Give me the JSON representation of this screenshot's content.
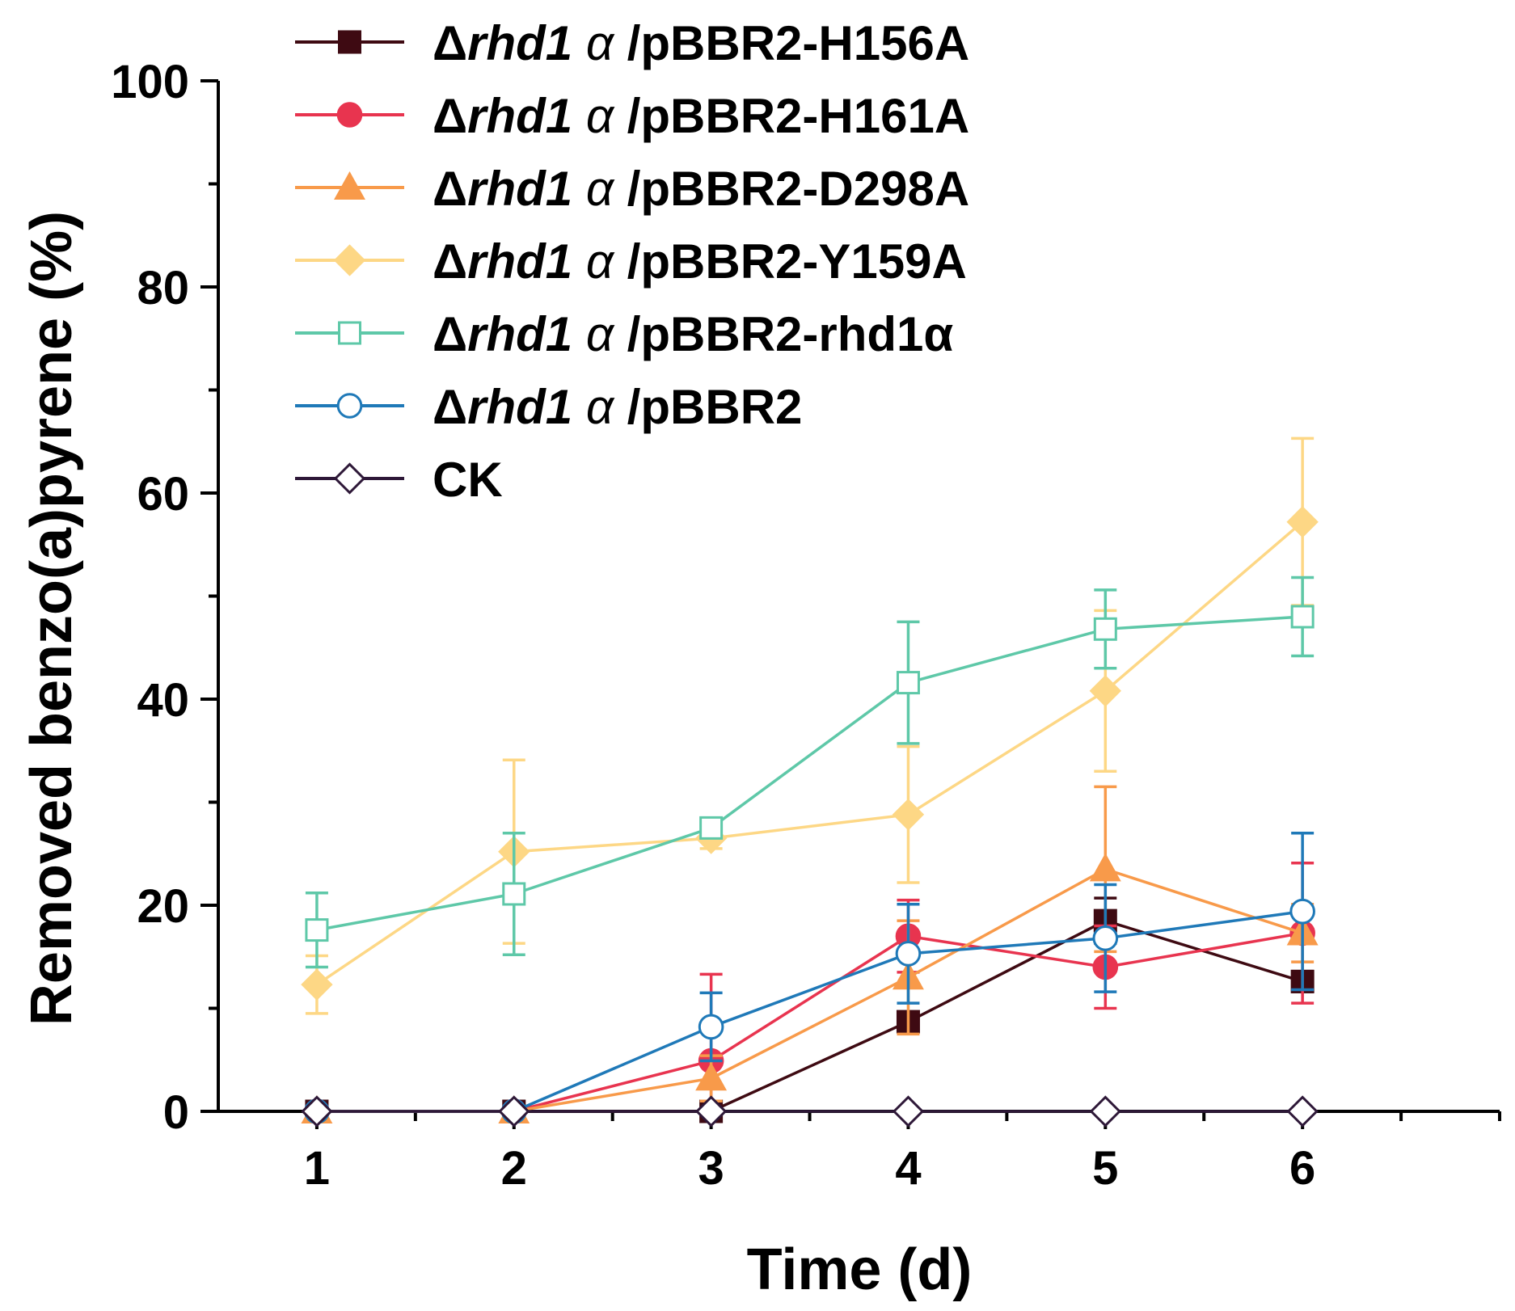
{
  "chart_data": {
    "type": "line",
    "title": "",
    "xlabel": "Time (d)",
    "ylabel": "Removed benzo(a)pyrene (%)",
    "xlim": [
      0.5,
      7.0
    ],
    "ylim": [
      0,
      100
    ],
    "x_ticks": [
      1,
      2,
      3,
      4,
      5,
      6
    ],
    "y_ticks": [
      0,
      20,
      40,
      60,
      80,
      100
    ],
    "x_tick_labels": [
      "1",
      "2",
      "3",
      "4",
      "5",
      "6"
    ],
    "y_tick_labels": [
      "0",
      "20",
      "40",
      "60",
      "80",
      "100"
    ],
    "grid": false,
    "legend_position": "top-left",
    "x": [
      1,
      2,
      3,
      4,
      5,
      6
    ],
    "series": [
      {
        "name": "Δrhd1α /pBBR2-H156A",
        "legend": {
          "delta": "Δ",
          "italic": "rhd1",
          "alpha": "α",
          "suffix": " /pBBR2-H156A"
        },
        "color": "#3e0a12",
        "marker": "square",
        "filled": true,
        "values": [
          0,
          0,
          0,
          8.7,
          18.5,
          12.6
        ],
        "errors": [
          0,
          0,
          0,
          0.8,
          2.2,
          1.0
        ]
      },
      {
        "name": "Δrhd1α /pBBR2-H161A",
        "legend": {
          "delta": "Δ",
          "italic": "rhd1",
          "alpha": "α",
          "suffix": " /pBBR2-H161A"
        },
        "color": "#e8344f",
        "marker": "circle",
        "filled": true,
        "values": [
          0,
          0,
          4.9,
          17.0,
          14.0,
          17.3
        ],
        "errors": [
          0,
          0,
          8.4,
          3.5,
          4.0,
          6.8
        ]
      },
      {
        "name": "Δrhd1α /pBBR2-D298A",
        "legend": {
          "delta": "Δ",
          "italic": "rhd1",
          "alpha": "α",
          "suffix": " /pBBR2-D298A"
        },
        "color": "#f89a4a",
        "marker": "triangle",
        "filled": true,
        "values": [
          0,
          0,
          3.2,
          13.0,
          23.5,
          17.3
        ],
        "errors": [
          0,
          0,
          2.2,
          5.5,
          8.0,
          2.8
        ]
      },
      {
        "name": "Δrhd1α /pBBR2-Y159A",
        "legend": {
          "delta": "Δ",
          "italic": "rhd1",
          "alpha": "α",
          "suffix": " /pBBR2-Y159A"
        },
        "color": "#fdd785",
        "marker": "diamond",
        "filled": true,
        "values": [
          12.3,
          25.2,
          26.5,
          28.8,
          40.8,
          57.2
        ],
        "errors": [
          2.8,
          8.9,
          1.0,
          6.6,
          7.8,
          8.1
        ]
      },
      {
        "name": "Δrhd1α /pBBR2-rhd1α",
        "legend": {
          "delta": "Δ",
          "italic": "rhd1",
          "alpha": "α",
          "suffix": " /pBBR2-rhd1α"
        },
        "color": "#5ec8a8",
        "marker": "square",
        "filled": false,
        "values": [
          17.6,
          21.1,
          27.5,
          41.6,
          46.8,
          48.0
        ],
        "errors": [
          3.6,
          5.9,
          0.5,
          5.9,
          3.8,
          3.8
        ]
      },
      {
        "name": "Δrhd1α /pBBR2",
        "legend": {
          "delta": "Δ",
          "italic": "rhd1",
          "alpha": "α",
          "suffix": " /pBBR2"
        },
        "color": "#1f79b8",
        "marker": "circle",
        "filled": false,
        "values": [
          0,
          0,
          8.2,
          15.3,
          16.8,
          19.4
        ],
        "errors": [
          0,
          0,
          3.3,
          4.8,
          5.2,
          7.6
        ]
      },
      {
        "name": "CK",
        "legend": {
          "delta": "",
          "italic": "",
          "alpha": "",
          "suffix": "CK"
        },
        "color": "#2e1838",
        "marker": "diamond",
        "filled": false,
        "values": [
          0,
          0,
          0,
          0,
          0,
          0
        ],
        "errors": [
          0,
          0,
          0,
          0,
          0,
          0
        ]
      }
    ]
  }
}
